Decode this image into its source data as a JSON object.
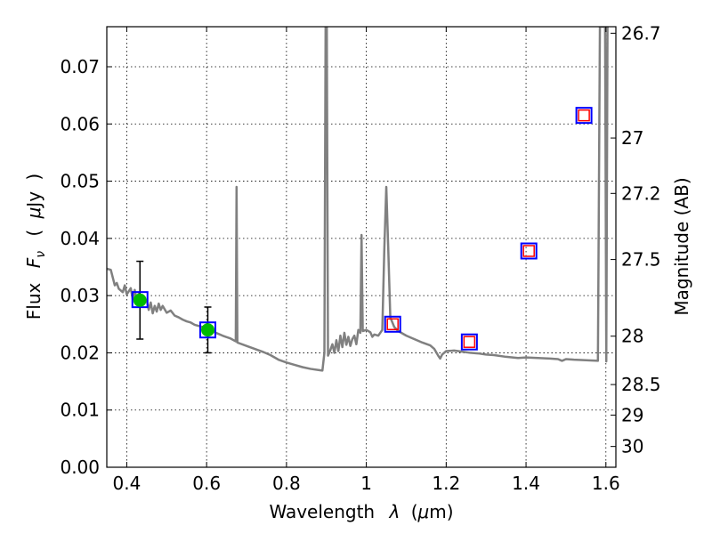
{
  "chart_data": {
    "type": "scatter",
    "xlabel": "Wavelength",
    "xlabel_math": "λ",
    "xlabel_unit_open": "(",
    "xlabel_unit_mu": "μ",
    "xlabel_unit_rest": "m)",
    "ylabel": "Flux",
    "ylabel_math_F": "F",
    "ylabel_math_sub": "ν",
    "ylabel_unit_open": "(",
    "ylabel_unit_mu": "μ",
    "ylabel_unit_rest": "Jy",
    "ylabel_unit_close": ")",
    "y2label": "Magnitude (AB)",
    "xlim": [
      0.35,
      1.625
    ],
    "ylim": [
      0.0,
      0.077
    ],
    "grid": true,
    "x_ticks": [
      0.4,
      0.6,
      0.8,
      1.0,
      1.2,
      1.4,
      1.6
    ],
    "x_tick_labels": [
      "0.4",
      "0.6",
      "0.8",
      "1",
      "1.2",
      "1.4",
      "1.6"
    ],
    "y_ticks": [
      0.0,
      0.01,
      0.02,
      0.03,
      0.04,
      0.05,
      0.06,
      0.07
    ],
    "y_tick_labels": [
      "0.00",
      "0.01",
      "0.02",
      "0.03",
      "0.04",
      "0.05",
      "0.06",
      "0.07"
    ],
    "y2_ticks": [
      26.7,
      27,
      27.2,
      27.5,
      28,
      28.5,
      29,
      30
    ],
    "y2_tick_labels": [
      "26.7",
      "27",
      "27.2",
      "27.5",
      "28",
      "28.5",
      "29",
      "30"
    ],
    "colors": {
      "spectrum": "#808080",
      "detection": "#00bb00",
      "model_box": "#0000ff",
      "observed_box": "#ff0000",
      "errorbar": "#000000"
    },
    "series": [
      {
        "kind": "line",
        "points": [
          [
            0.35,
            0.0347
          ],
          [
            0.36,
            0.0345
          ],
          [
            0.37,
            0.0318
          ],
          [
            0.375,
            0.0322
          ],
          [
            0.38,
            0.0312
          ],
          [
            0.39,
            0.0306
          ],
          [
            0.395,
            0.0318
          ],
          [
            0.4,
            0.0302
          ],
          [
            0.41,
            0.0313
          ],
          [
            0.415,
            0.0294
          ],
          [
            0.42,
            0.031
          ],
          [
            0.425,
            0.0291
          ],
          [
            0.43,
            0.0303
          ],
          [
            0.44,
            0.0286
          ],
          [
            0.45,
            0.0292
          ],
          [
            0.455,
            0.0275
          ],
          [
            0.46,
            0.0288
          ],
          [
            0.465,
            0.0269
          ],
          [
            0.47,
            0.0282
          ],
          [
            0.475,
            0.0272
          ],
          [
            0.48,
            0.0286
          ],
          [
            0.485,
            0.0275
          ],
          [
            0.49,
            0.0282
          ],
          [
            0.5,
            0.027
          ],
          [
            0.51,
            0.0274
          ],
          [
            0.52,
            0.0265
          ],
          [
            0.53,
            0.0262
          ],
          [
            0.54,
            0.0258
          ],
          [
            0.55,
            0.0255
          ],
          [
            0.56,
            0.0253
          ],
          [
            0.57,
            0.0249
          ],
          [
            0.58,
            0.0247
          ],
          [
            0.59,
            0.0245
          ],
          [
            0.6,
            0.0242
          ],
          [
            0.62,
            0.0236
          ],
          [
            0.64,
            0.023
          ],
          [
            0.66,
            0.0225
          ],
          [
            0.673,
            0.022
          ],
          [
            0.675,
            0.049
          ],
          [
            0.677,
            0.0218
          ],
          [
            0.7,
            0.0212
          ],
          [
            0.72,
            0.0207
          ],
          [
            0.74,
            0.0202
          ],
          [
            0.76,
            0.0196
          ],
          [
            0.78,
            0.0188
          ],
          [
            0.8,
            0.0183
          ],
          [
            0.82,
            0.0179
          ],
          [
            0.84,
            0.0175
          ],
          [
            0.86,
            0.0172
          ],
          [
            0.88,
            0.017
          ],
          [
            0.89,
            0.0169
          ],
          [
            0.895,
            0.02
          ],
          [
            0.898,
            0.077
          ],
          [
            0.901,
            0.077
          ],
          [
            0.904,
            0.0195
          ],
          [
            0.91,
            0.0205
          ],
          [
            0.915,
            0.0215
          ],
          [
            0.92,
            0.02
          ],
          [
            0.925,
            0.0222
          ],
          [
            0.93,
            0.0203
          ],
          [
            0.935,
            0.023
          ],
          [
            0.94,
            0.021
          ],
          [
            0.945,
            0.0235
          ],
          [
            0.95,
            0.0214
          ],
          [
            0.955,
            0.0228
          ],
          [
            0.96,
            0.0212
          ],
          [
            0.965,
            0.0224
          ],
          [
            0.97,
            0.023
          ],
          [
            0.975,
            0.0215
          ],
          [
            0.98,
            0.024
          ],
          [
            0.985,
            0.0235
          ],
          [
            0.988,
            0.0406
          ],
          [
            0.991,
            0.0238
          ],
          [
            1.0,
            0.024
          ],
          [
            1.01,
            0.0236
          ],
          [
            1.015,
            0.0228
          ],
          [
            1.02,
            0.0232
          ],
          [
            1.03,
            0.023
          ],
          [
            1.04,
            0.024
          ],
          [
            1.045,
            0.038
          ],
          [
            1.05,
            0.049
          ],
          [
            1.055,
            0.038
          ],
          [
            1.06,
            0.0262
          ],
          [
            1.07,
            0.0245
          ],
          [
            1.08,
            0.0238
          ],
          [
            1.1,
            0.023
          ],
          [
            1.12,
            0.0224
          ],
          [
            1.14,
            0.0218
          ],
          [
            1.16,
            0.0213
          ],
          [
            1.17,
            0.0207
          ],
          [
            1.18,
            0.0195
          ],
          [
            1.185,
            0.019
          ],
          [
            1.19,
            0.0197
          ],
          [
            1.2,
            0.0203
          ],
          [
            1.22,
            0.0204
          ],
          [
            1.24,
            0.0202
          ],
          [
            1.26,
            0.02
          ],
          [
            1.28,
            0.0199
          ],
          [
            1.3,
            0.0197
          ],
          [
            1.32,
            0.0196
          ],
          [
            1.35,
            0.0193
          ],
          [
            1.38,
            0.0191
          ],
          [
            1.4,
            0.0192
          ],
          [
            1.43,
            0.0191
          ],
          [
            1.46,
            0.019
          ],
          [
            1.48,
            0.0189
          ],
          [
            1.49,
            0.0186
          ],
          [
            1.5,
            0.0189
          ],
          [
            1.52,
            0.0188
          ],
          [
            1.55,
            0.0187
          ],
          [
            1.58,
            0.0186
          ],
          [
            1.585,
            0.077
          ],
          [
            1.592,
            0.077
          ],
          [
            1.598,
            0.077
          ],
          [
            1.601,
            0.0185
          ],
          [
            1.604,
            0.077
          ],
          [
            1.607,
            0.077
          ]
        ]
      },
      {
        "kind": "detections",
        "points": [
          {
            "x": 0.433,
            "y": 0.0292,
            "err": 0.0068
          },
          {
            "x": 0.603,
            "y": 0.024,
            "err": 0.004
          }
        ]
      },
      {
        "kind": "model_boxes",
        "points": [
          {
            "x": 0.433,
            "y": 0.0293
          },
          {
            "x": 0.603,
            "y": 0.024
          },
          {
            "x": 1.066,
            "y": 0.025
          },
          {
            "x": 1.258,
            "y": 0.0219
          },
          {
            "x": 1.407,
            "y": 0.0378
          },
          {
            "x": 1.545,
            "y": 0.0615
          }
        ]
      },
      {
        "kind": "observed_boxes",
        "points": [
          {
            "x": 1.066,
            "y": 0.025
          },
          {
            "x": 1.258,
            "y": 0.0219
          },
          {
            "x": 1.407,
            "y": 0.0378
          },
          {
            "x": 1.545,
            "y": 0.0615
          }
        ]
      }
    ]
  }
}
